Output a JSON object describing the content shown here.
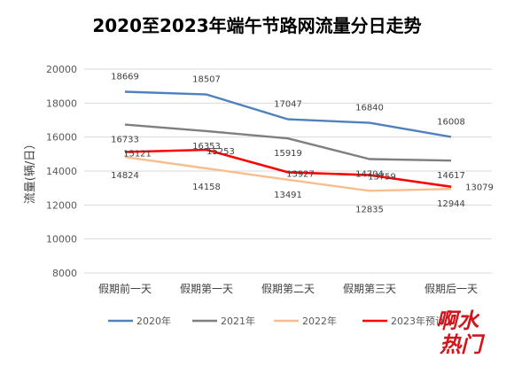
{
  "chart_data": {
    "type": "line",
    "title": "2020至2023年端午节路网流量分日走势",
    "ylabel": "流量(辆/日）",
    "xlabel": "",
    "ylim": [
      8000,
      20000
    ],
    "yticks": [
      8000,
      10000,
      12000,
      14000,
      16000,
      18000,
      20000
    ],
    "grid": true,
    "legend_position": "bottom",
    "categories": [
      "假期前一天",
      "假期第一天",
      "假期第二天",
      "假期第三天",
      "假期后一天"
    ],
    "series": [
      {
        "name": "2020年",
        "color": "#4f81bd",
        "values": [
          18669,
          18507,
          17047,
          16840,
          16008
        ]
      },
      {
        "name": "2021年",
        "color": "#7f7f7f",
        "values": [
          16733,
          16353,
          15919,
          14704,
          14617
        ]
      },
      {
        "name": "2022年",
        "color": "#f9be8e",
        "values": [
          14824,
          14158,
          13491,
          12835,
          12944
        ]
      },
      {
        "name": "2023年预计",
        "color": "#ff0000",
        "values": [
          15121,
          15253,
          13927,
          13759,
          13079
        ]
      }
    ]
  },
  "watermark": {
    "line1": "啊水",
    "line2": "热门"
  }
}
